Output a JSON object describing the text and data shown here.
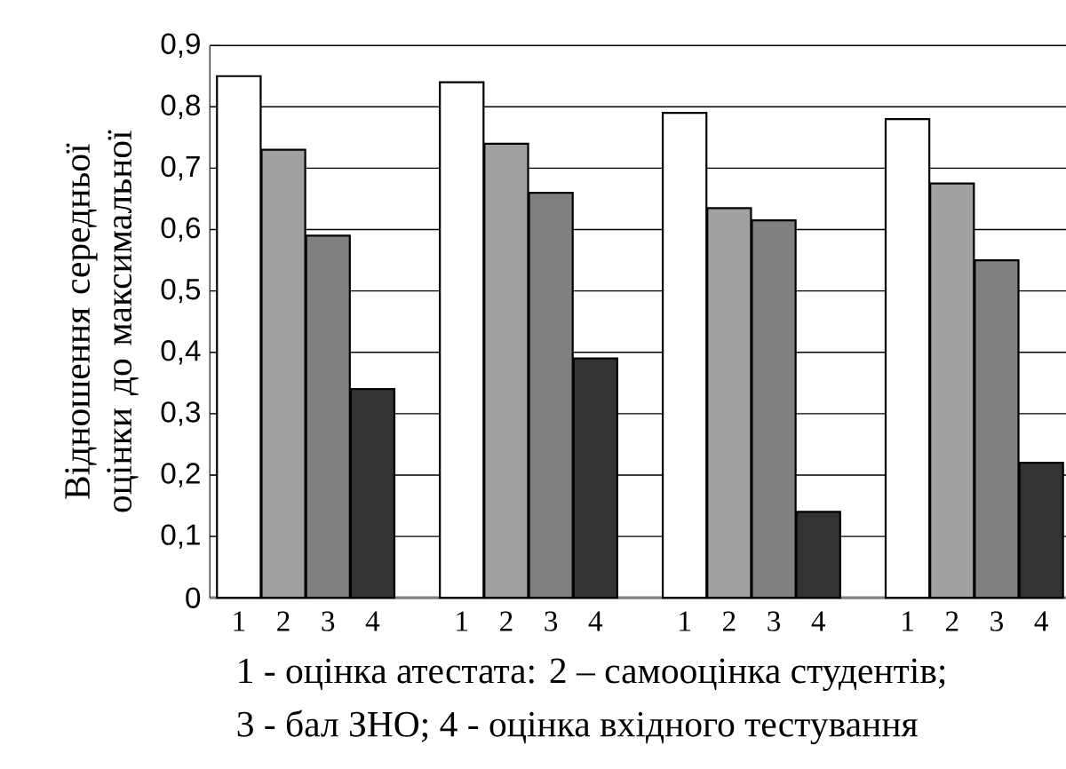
{
  "chart_data": {
    "type": "bar",
    "ylabel": "Відношення середньої оцінки до максимальної",
    "categories": [
      "1",
      "2",
      "3",
      "4",
      null,
      "1",
      "2",
      "3",
      "4",
      null,
      "1",
      "2",
      "3",
      "4",
      null,
      "1",
      "2",
      "3",
      "4"
    ],
    "values": [
      0.85,
      0.73,
      0.59,
      0.34,
      null,
      0.84,
      0.74,
      0.66,
      0.39,
      null,
      0.79,
      0.635,
      0.615,
      0.14,
      null,
      0.78,
      0.675,
      0.55,
      0.22
    ],
    "colors": [
      "#ffffff",
      "#a0a0a0",
      "#808080",
      "#333333",
      null,
      "#ffffff",
      "#a0a0a0",
      "#808080",
      "#333333",
      null,
      "#ffffff",
      "#a0a0a0",
      "#808080",
      "#333333",
      null,
      "#ffffff",
      "#a0a0a0",
      "#808080",
      "#333333"
    ],
    "ylim": [
      0,
      0.9
    ],
    "yticks": [
      {
        "value": 0,
        "label": "0"
      },
      {
        "value": 0.1,
        "label": "0,1"
      },
      {
        "value": 0.2,
        "label": "0,2"
      },
      {
        "value": 0.3,
        "label": "0,3"
      },
      {
        "value": 0.4,
        "label": "0,4"
      },
      {
        "value": 0.5,
        "label": "0,5"
      },
      {
        "value": 0.6,
        "label": "0,6"
      },
      {
        "value": 0.7,
        "label": "0,7"
      },
      {
        "value": 0.8,
        "label": "0,8"
      },
      {
        "value": 0.9,
        "label": "0,9"
      }
    ],
    "grid": "y",
    "annotations": [
      "1 - оцінка атестата: 2 – самооцінка студентів;",
      "3 - бал ЗНО; 4 - оцінка вхідного тестування"
    ]
  }
}
